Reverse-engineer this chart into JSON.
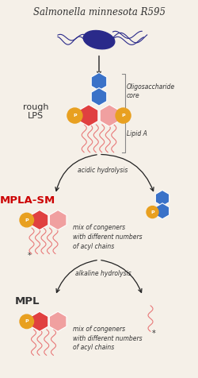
{
  "bg_color": "#f5f0e8",
  "title": "Salmonella minnesota R595",
  "bacteria_color": "#2a2a8a",
  "hex_blue": "#3a72c8",
  "hex_pink_dark": "#e04040",
  "hex_pink_light": "#f0a0a0",
  "phosphate_color": "#e8a020",
  "phosphate_text": "P",
  "acyl_color": "#e87878",
  "arrow_color": "#222222",
  "label_rough_lps": "rough\nLPS",
  "label_oligo": "Oligosaccharide\ncore",
  "label_lipida": "Lipid A",
  "label_acid": "acidic hydrolysis",
  "label_mpla": "MPLA-SM",
  "label_mpla_color": "#cc0000",
  "label_mpl": "MPL",
  "label_alkaline": "alkaline hydrolysis",
  "label_mix": "mix of congeners\nwith different numbers\nof acyl chains",
  "label_mix2": "mix of congeners\nwith different numbers\nof acyl chains"
}
